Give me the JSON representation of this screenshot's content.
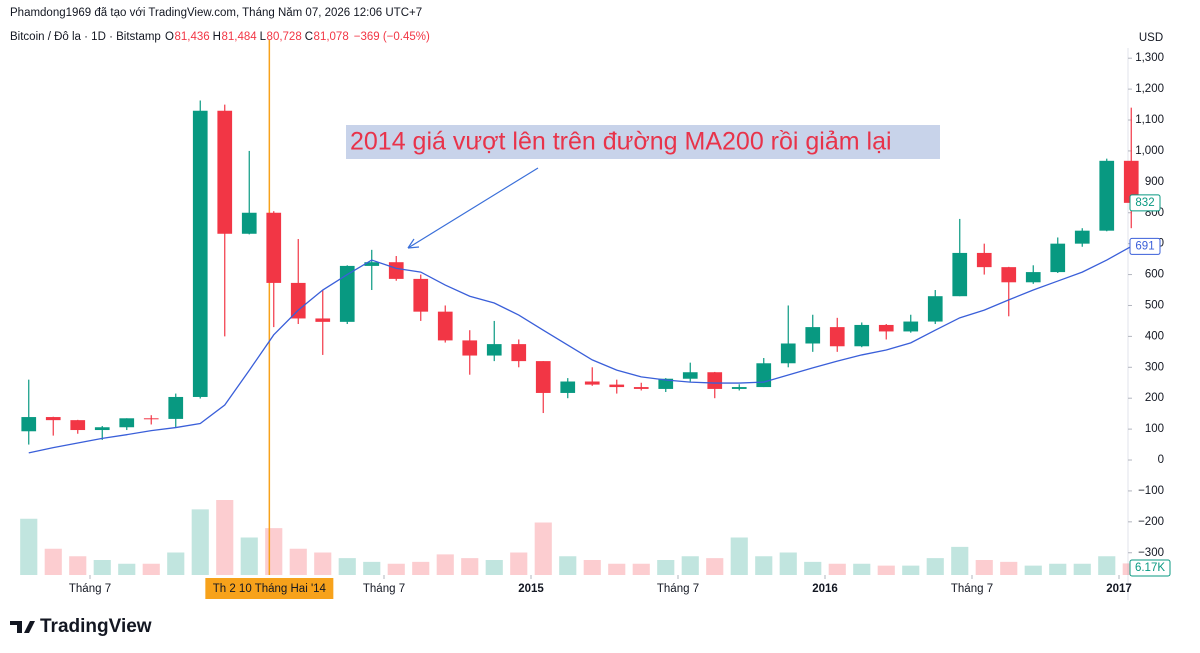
{
  "header": {
    "credit": "Phamdong1969 đã tạo với TradingView.com, Tháng Năm 07, 2026 12:06 UTC+7",
    "symbol": "Bitcoin / Đô la · 1D · Bitstamp",
    "ohlc": [
      {
        "label": "O",
        "value": "81,436"
      },
      {
        "label": "H",
        "value": "81,484"
      },
      {
        "label": "L",
        "value": "80,728"
      },
      {
        "label": "C",
        "value": "81,078"
      }
    ],
    "change": "−369 (−0.45%)"
  },
  "logo": "TradingView",
  "chart_data": {
    "type": "candlestick",
    "annotation": "2014 giá vượt lên trên đường MA200 rồi giảm lại",
    "currency": "USD",
    "open": [
      93,
      139,
      129,
      97,
      106,
      135,
      133,
      204,
      1130,
      732,
      800,
      573,
      458,
      447,
      628,
      640,
      586,
      480,
      387,
      338,
      375,
      320,
      217,
      254,
      244,
      236,
      230,
      263,
      284,
      230,
      236,
      313,
      377,
      430,
      368,
      437,
      416,
      448,
      530,
      670,
      624,
      575,
      608,
      700,
      742,
      968
    ],
    "high": [
      260,
      140,
      130,
      110,
      135,
      145,
      215,
      1163,
      1150,
      1000,
      805,
      715,
      550,
      630,
      680,
      660,
      600,
      500,
      420,
      450,
      390,
      320,
      265,
      300,
      260,
      250,
      265,
      315,
      285,
      245,
      330,
      500,
      470,
      460,
      445,
      440,
      470,
      550,
      780,
      700,
      625,
      630,
      720,
      750,
      975,
      1140
    ],
    "low": [
      50,
      79,
      85,
      65,
      97,
      115,
      105,
      199,
      400,
      730,
      430,
      440,
      340,
      440,
      550,
      580,
      450,
      380,
      276,
      320,
      300,
      152,
      200,
      240,
      215,
      225,
      220,
      253,
      200,
      225,
      236,
      300,
      350,
      350,
      365,
      390,
      412,
      440,
      530,
      600,
      465,
      570,
      605,
      690,
      740,
      750
    ],
    "close": [
      139,
      129,
      97,
      106,
      135,
      133,
      204,
      1130,
      732,
      800,
      573,
      458,
      447,
      628,
      640,
      586,
      480,
      387,
      338,
      375,
      320,
      217,
      254,
      244,
      236,
      230,
      263,
      284,
      230,
      236,
      313,
      377,
      430,
      368,
      437,
      416,
      448,
      530,
      670,
      624,
      575,
      608,
      700,
      742,
      968,
      832
    ],
    "up_color": "#089981",
    "down_color": "#f23645",
    "series": [
      {
        "name": "MA200",
        "color": "#3a5fd9",
        "values": [
          23,
          40,
          55,
          70,
          82,
          95,
          105,
          118,
          178,
          290,
          405,
          485,
          550,
          600,
          647,
          620,
          608,
          566,
          530,
          508,
          469,
          420,
          372,
          324,
          291,
          269,
          259,
          252,
          249,
          249,
          252,
          275,
          298,
          320,
          340,
          356,
          379,
          420,
          460,
          485,
          518,
          550,
          579,
          608,
          647,
          691
        ]
      }
    ],
    "volume": [
      30,
      14,
      10,
      8,
      6,
      6,
      12,
      35,
      40,
      20,
      25,
      14,
      12,
      9,
      7,
      6,
      7,
      11,
      9,
      8,
      12,
      28,
      10,
      8,
      6,
      6,
      8,
      10,
      9,
      20,
      10,
      12,
      7,
      6,
      6,
      5,
      5,
      9,
      15,
      8,
      7,
      5,
      6,
      6,
      10,
      6.17
    ],
    "volume_last_label": "6.17K",
    "volume_lim": [
      0,
      80
    ],
    "ylim": [
      -372,
      1333
    ],
    "yticks": [
      {
        "value": -300,
        "label": "−300"
      },
      {
        "value": -200,
        "label": "−200"
      },
      {
        "value": -100,
        "label": "−100"
      },
      0,
      100,
      200,
      300,
      400,
      500,
      600,
      700,
      800,
      900,
      {
        "value": 1000,
        "label": "1,000"
      },
      {
        "value": 1100,
        "label": "1,100"
      },
      {
        "value": 1200,
        "label": "1,200"
      },
      {
        "value": 1300,
        "label": "1,300"
      }
    ],
    "xticks": [
      {
        "value": 3,
        "label": "Tháng 7"
      },
      {
        "value": 15,
        "label": "Tháng 7"
      },
      {
        "value": 21,
        "label": "2015"
      },
      {
        "value": 27,
        "label": "Tháng 7"
      },
      {
        "value": 33,
        "label": "2016"
      },
      {
        "value": 39,
        "label": "Tháng 7"
      },
      {
        "value": 45,
        "label": "2017"
      }
    ],
    "crosshair": {
      "x": 10.32,
      "label": "Th 2 10 Tháng Hai '14"
    }
  }
}
